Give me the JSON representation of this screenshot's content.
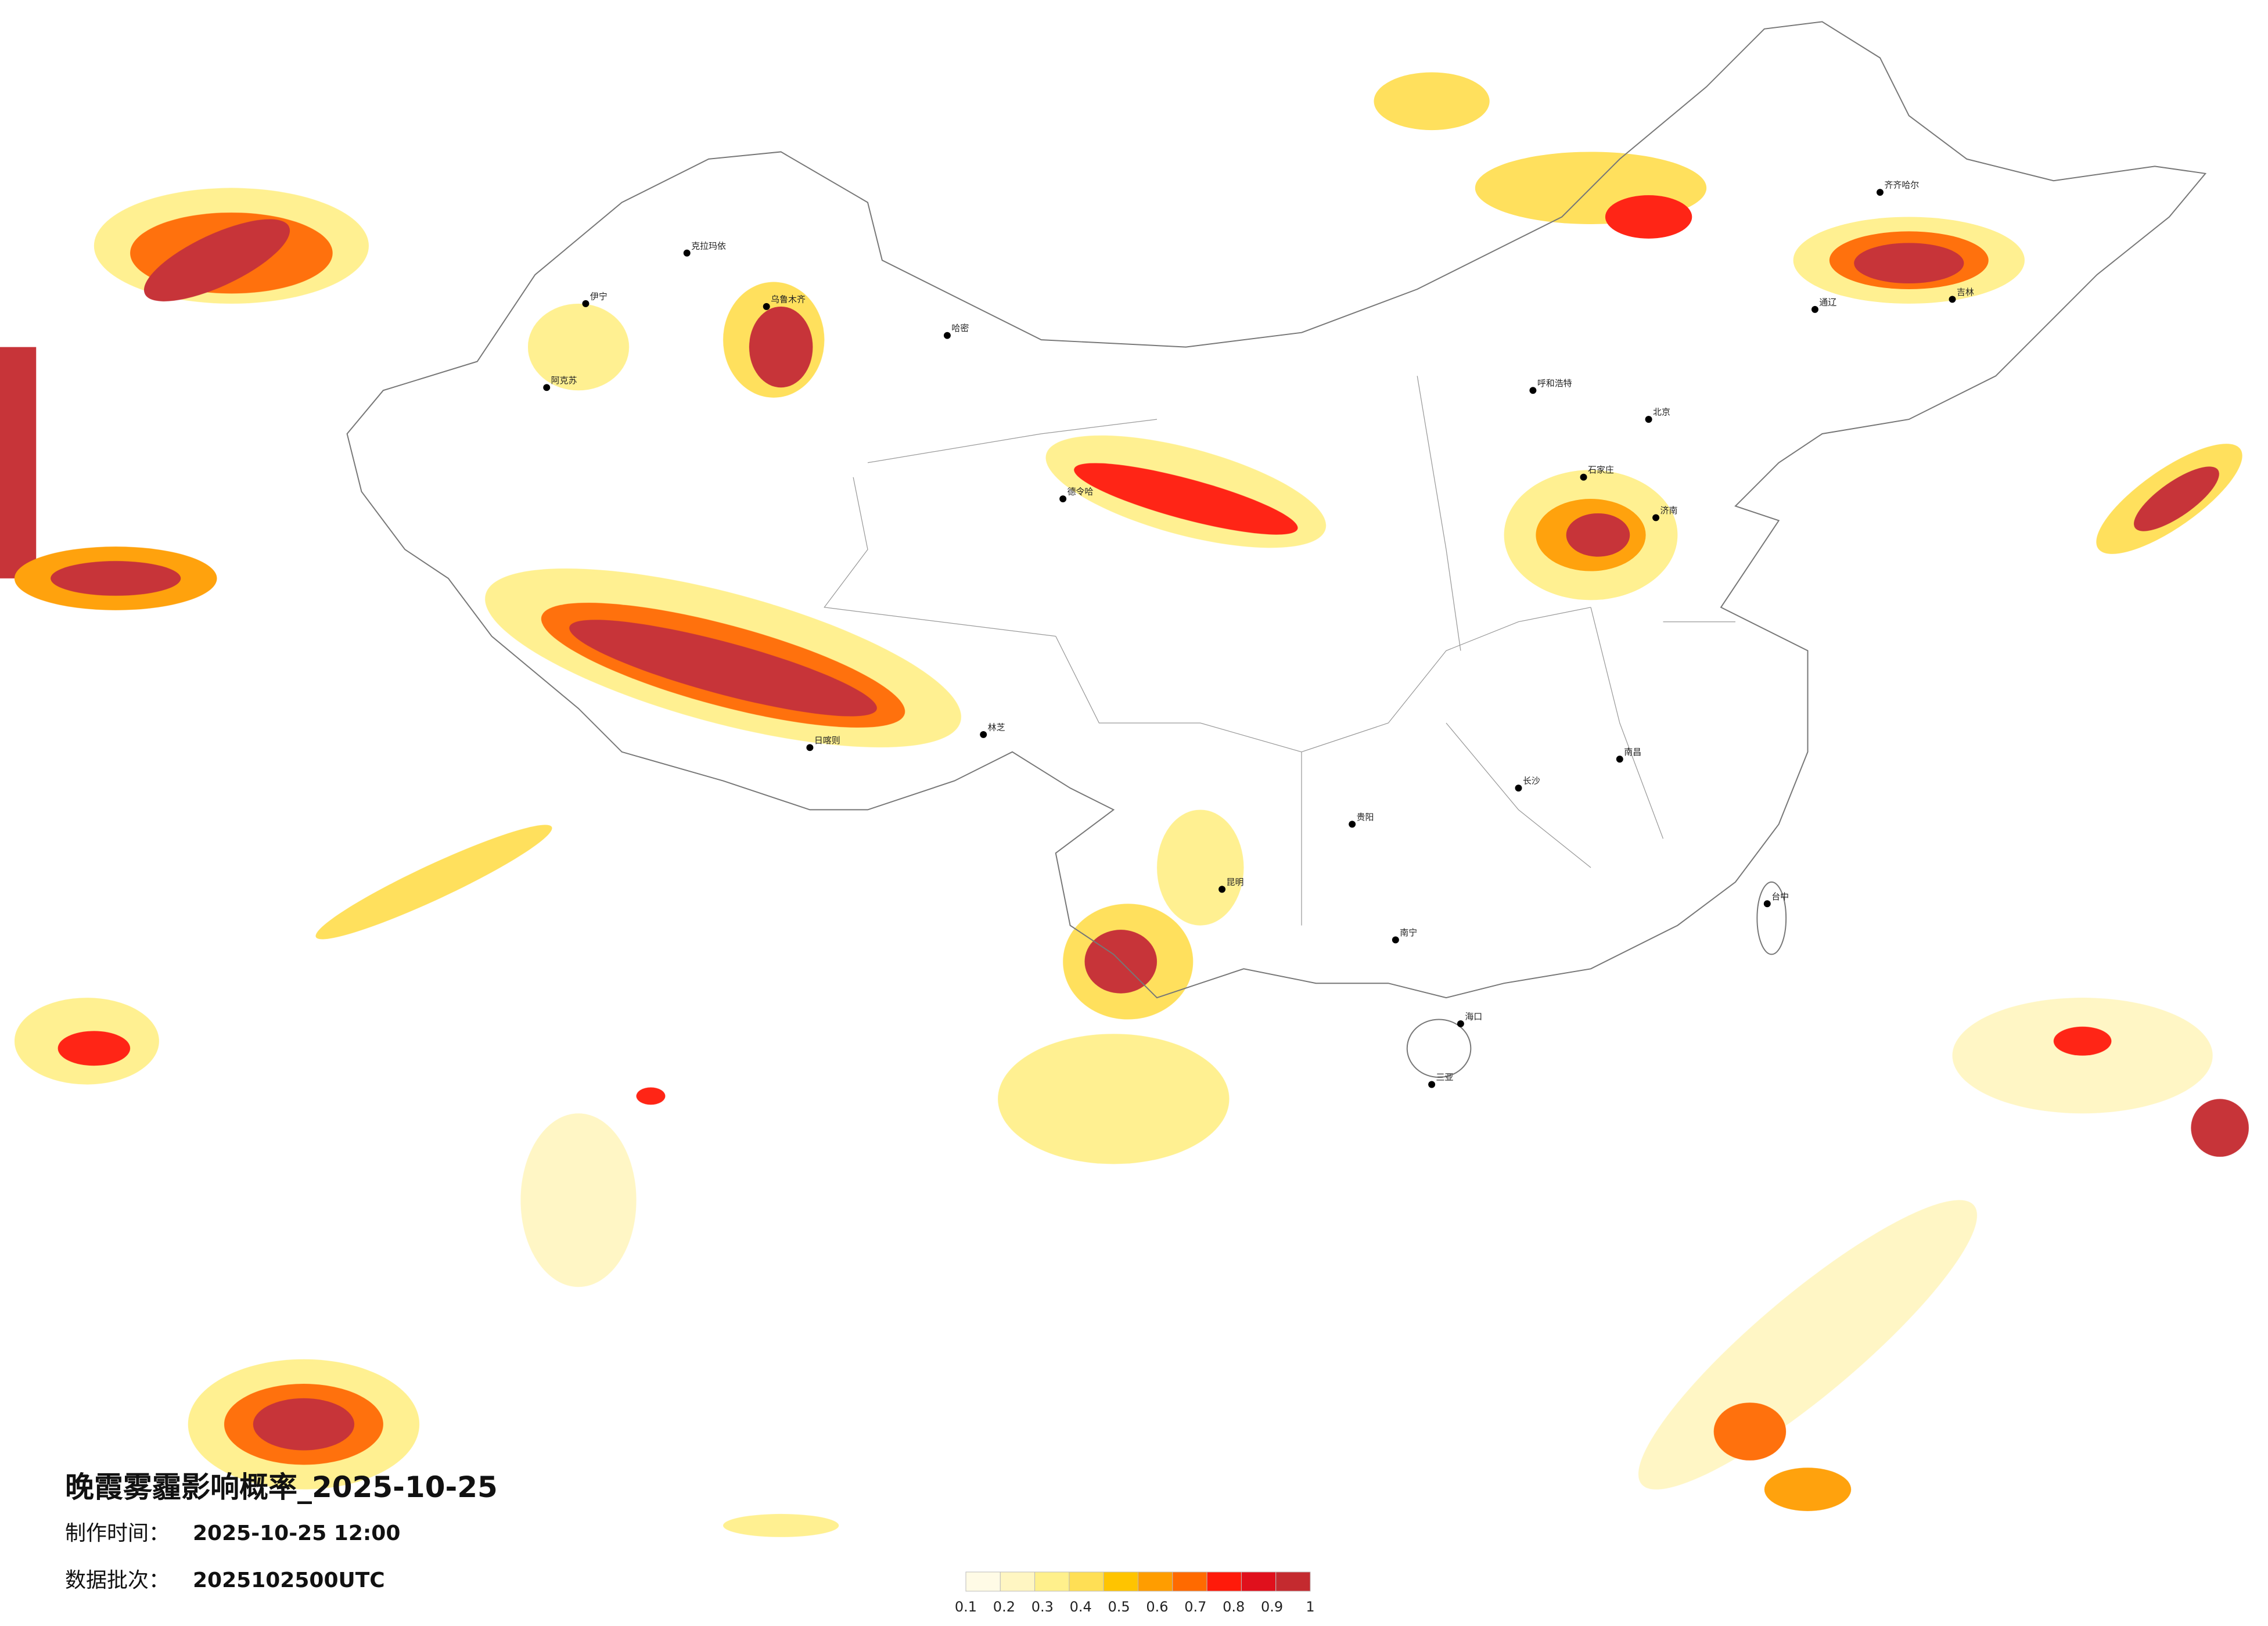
{
  "title": "晚霞雾霾影响概率_2025-10-25",
  "production_time": {
    "label": "制作时间：",
    "value": "2025-10-25 12:00"
  },
  "data_batch": {
    "label": "数据批次：",
    "value": "2025102500UTC"
  },
  "colorbar": {
    "colors": [
      "#fffbe6",
      "#fff6c2",
      "#fff08c",
      "#ffdf55",
      "#ffc400",
      "#ff9d00",
      "#ff6a00",
      "#ff1a0a",
      "#e0101c",
      "#c42a2f"
    ],
    "ticks": [
      0.1,
      0.2,
      0.3,
      0.4,
      0.5,
      0.6,
      0.7,
      0.8,
      0.9,
      1
    ]
  },
  "cities": [
    "克拉玛依",
    "伊宁",
    "阿克苏",
    "乌鲁木齐",
    "哈密",
    "德令哈",
    "日喀则",
    "林芝",
    "呼和浩特",
    "北京",
    "石家庄",
    "济南",
    "长沙",
    "南昌",
    "贵阳",
    "昆明",
    "南宁",
    "海口",
    "三亚",
    "台中",
    "齐齐哈尔",
    "吉林",
    "通辽"
  ]
}
